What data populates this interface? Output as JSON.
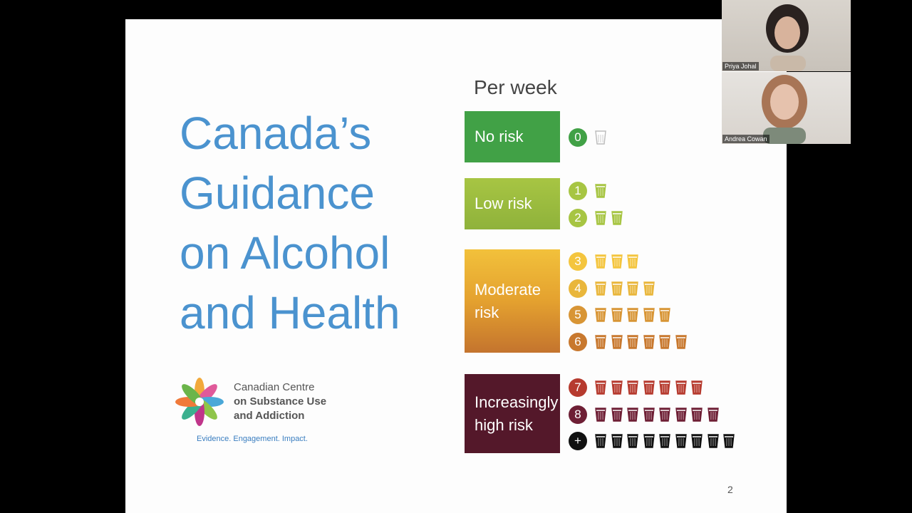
{
  "slide": {
    "title_lines": [
      "Canada’s",
      "Guidance",
      "on Alcohol",
      "and Health"
    ],
    "per_week": "Per week",
    "page_number": "2",
    "categories": {
      "no_risk": "No risk",
      "low_risk": "Low risk",
      "moderate_risk_l1": "Moderate",
      "moderate_risk_l2": "risk",
      "high_risk_l1": "Increasingly",
      "high_risk_l2": "high risk"
    },
    "drink_rows": [
      {
        "label": "0",
        "drinks": 0,
        "color": "#41a146"
      },
      {
        "label": "1",
        "drinks": 1,
        "color": "#a7c543"
      },
      {
        "label": "2",
        "drinks": 2,
        "color": "#a7c543"
      },
      {
        "label": "3",
        "drinks": 3,
        "color": "#f4c53e"
      },
      {
        "label": "4",
        "drinks": 4,
        "color": "#e9b63b"
      },
      {
        "label": "5",
        "drinks": 5,
        "color": "#d89535"
      },
      {
        "label": "6",
        "drinks": 6,
        "color": "#c8782e"
      },
      {
        "label": "7",
        "drinks": 7,
        "color": "#b63a2e"
      },
      {
        "label": "8",
        "drinks": 8,
        "color": "#6e1f35"
      },
      {
        "label": "+",
        "drinks": 9,
        "color": "#111111"
      }
    ],
    "org": {
      "line1": "Canadian Centre",
      "line2": "on Substance Use",
      "line3": "and Addiction",
      "tagline": "Evidence. Engagement. Impact."
    }
  },
  "participants": [
    {
      "name": "Priya Johal"
    },
    {
      "name": "Andrea Cowan"
    }
  ]
}
